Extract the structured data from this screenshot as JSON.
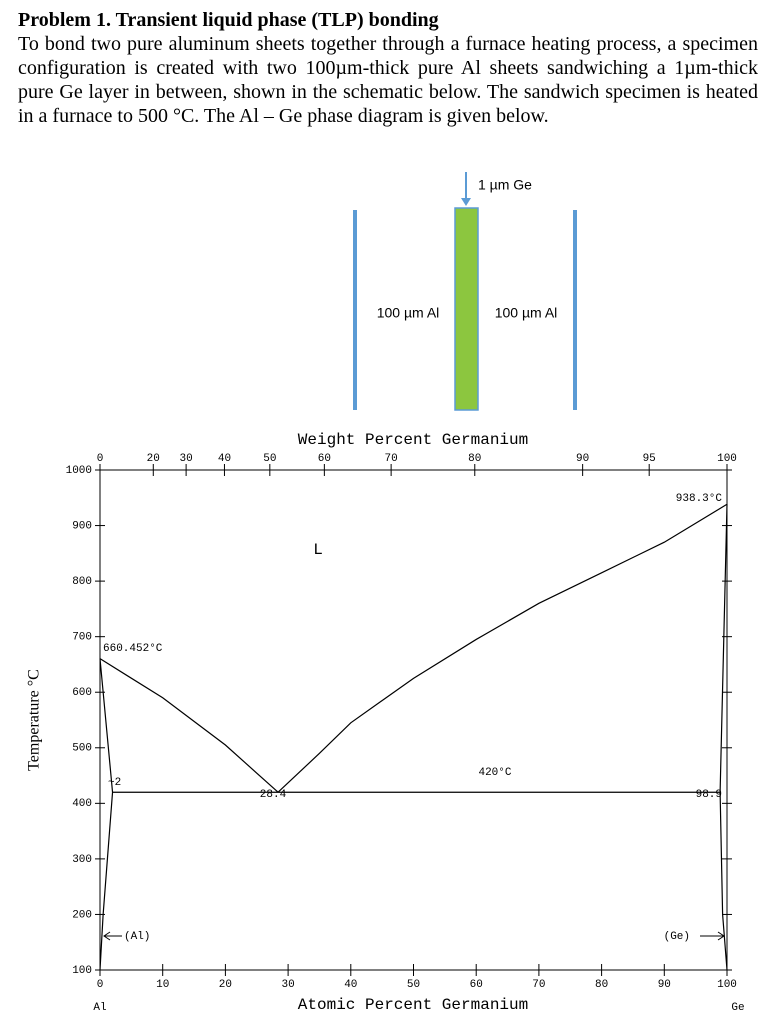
{
  "problem": {
    "title": "Problem 1.  Transient liquid phase (TLP) bonding",
    "text": "To bond two pure aluminum sheets together through a furnace heating process, a specimen configuration is created with two 100µm-thick pure Al sheets sandwiching a 1µm-thick pure Ge layer in between, shown in the schematic below.  The sandwich specimen is heated in a furnace to 500 °C. The Al – Ge phase diagram is given below."
  },
  "schematic": {
    "ge_label": "1 µm Ge",
    "left_label": "100 µm Al",
    "right_label": "100 µm Al"
  },
  "chart_data": {
    "type": "line",
    "title": "Weight Percent Germanium",
    "xlabel": "Atomic Percent Germanium",
    "ylabel": "Temperature °C",
    "xlim": [
      0,
      100
    ],
    "ylim": [
      100,
      1000
    ],
    "xticks": [
      0,
      10,
      20,
      30,
      40,
      50,
      60,
      70,
      80,
      90,
      100
    ],
    "yticks": [
      100,
      200,
      300,
      400,
      500,
      600,
      700,
      800,
      900,
      1000
    ],
    "x2ticks": [
      0,
      20,
      30,
      40,
      50,
      60,
      70,
      80,
      90,
      95,
      100
    ],
    "series": [
      {
        "color": "#000000",
        "x": [
          0,
          10,
          20,
          28.4
        ],
        "values": [
          660.452,
          590,
          505,
          420
        ]
      },
      {
        "color": "#000000",
        "x": [
          28.4,
          35,
          40,
          50,
          60,
          70,
          80,
          90,
          100
        ],
        "values": [
          420,
          490,
          545,
          625,
          695,
          760,
          815,
          870,
          938.3
        ]
      },
      {
        "color": "#000000",
        "x": [
          2,
          98.9
        ],
        "values": [
          420,
          420
        ]
      },
      {
        "color": "#000000",
        "x": [
          0,
          2,
          0.5,
          0
        ],
        "values": [
          660.452,
          420,
          200,
          100
        ]
      },
      {
        "color": "#000000",
        "x": [
          100,
          98.9,
          99.3,
          100
        ],
        "values": [
          938.3,
          420,
          200,
          100
        ]
      }
    ],
    "annotations": [
      "L",
      "660.452°C",
      "938.3°C",
      "420°C",
      "28.4",
      "~2",
      "98.9",
      "(Al)",
      "(Ge)",
      "Al",
      "Ge"
    ]
  }
}
